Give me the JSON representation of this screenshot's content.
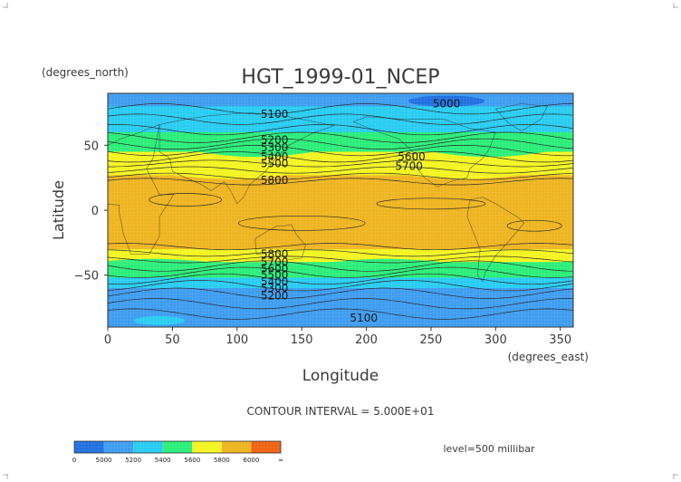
{
  "chart_data": {
    "type": "heatmap",
    "title": "HGT_1999-01_NCEP",
    "ylabel": "Latitude",
    "xlabel": "Longitude",
    "y_units": "(degrees_north)",
    "x_units": "(degrees_east)",
    "xlim": [
      0,
      360
    ],
    "ylim": [
      -90,
      90
    ],
    "x_ticks": [
      "0",
      "50",
      "100",
      "150",
      "200",
      "250",
      "300",
      "350"
    ],
    "y_ticks": [
      "50",
      "0",
      "−50"
    ],
    "contour_interval_text": "CONTOUR INTERVAL = 5.000E+01",
    "level_text": "level=500 millibar",
    "grid": true,
    "colorbar": {
      "labels": [
        "0",
        "5000",
        "5200",
        "5400",
        "5600",
        "5800",
        "6000",
        "∞"
      ],
      "colors": [
        "#1e6fe0",
        "#3c9cf0",
        "#26ccf2",
        "#28ee78",
        "#f4f41e",
        "#eeb41e",
        "#f06010"
      ]
    },
    "contour_labels": [
      {
        "text": "5000",
        "lon": 262,
        "lat": 82
      },
      {
        "text": "5100",
        "lon": 129,
        "lat": 74
      },
      {
        "text": "5200",
        "lon": 129,
        "lat": 54
      },
      {
        "text": "5300",
        "lon": 129,
        "lat": 48
      },
      {
        "text": "5400",
        "lon": 129,
        "lat": 41
      },
      {
        "text": "5500",
        "lon": 129,
        "lat": 36
      },
      {
        "text": "5600",
        "lon": 235,
        "lat": 41
      },
      {
        "text": "5700",
        "lon": 233,
        "lat": 34
      },
      {
        "text": "5800",
        "lon": 129,
        "lat": 23
      },
      {
        "text": "5800",
        "lon": 129,
        "lat": -34
      },
      {
        "text": "5700",
        "lon": 129,
        "lat": -40
      },
      {
        "text": "5600",
        "lon": 129,
        "lat": -45
      },
      {
        "text": "5500",
        "lon": 129,
        "lat": -50
      },
      {
        "text": "5400",
        "lon": 129,
        "lat": -55
      },
      {
        "text": "5300",
        "lon": 129,
        "lat": -60
      },
      {
        "text": "5200",
        "lon": 129,
        "lat": -66
      },
      {
        "text": "5100",
        "lon": 198,
        "lat": -83
      }
    ],
    "bands_by_latitude": [
      {
        "lat_max": 90,
        "lat_min": 80,
        "value_range": "5000-5200",
        "color": "#3c9cf0"
      },
      {
        "lat_max": 80,
        "lat_min": 60,
        "value_range": "5200-5400",
        "color": "#26ccf2"
      },
      {
        "lat_max": 60,
        "lat_min": 45,
        "value_range": "5400-5600",
        "color": "#28ee78"
      },
      {
        "lat_max": 45,
        "lat_min": 27,
        "value_range": "5600-5800",
        "color": "#f4f41e"
      },
      {
        "lat_max": 27,
        "lat_min": -30,
        "value_range": "5800-6000",
        "color": "#eeb41e"
      },
      {
        "lat_max": -30,
        "lat_min": -40,
        "value_range": "5600-5800",
        "color": "#f4f41e"
      },
      {
        "lat_max": -40,
        "lat_min": -52,
        "value_range": "5400-5600",
        "color": "#28ee78"
      },
      {
        "lat_max": -52,
        "lat_min": -60,
        "value_range": "5200-5400",
        "color": "#26ccf2"
      },
      {
        "lat_max": -60,
        "lat_min": -90,
        "value_range": "5000-5200",
        "color": "#3c9cf0"
      }
    ]
  }
}
